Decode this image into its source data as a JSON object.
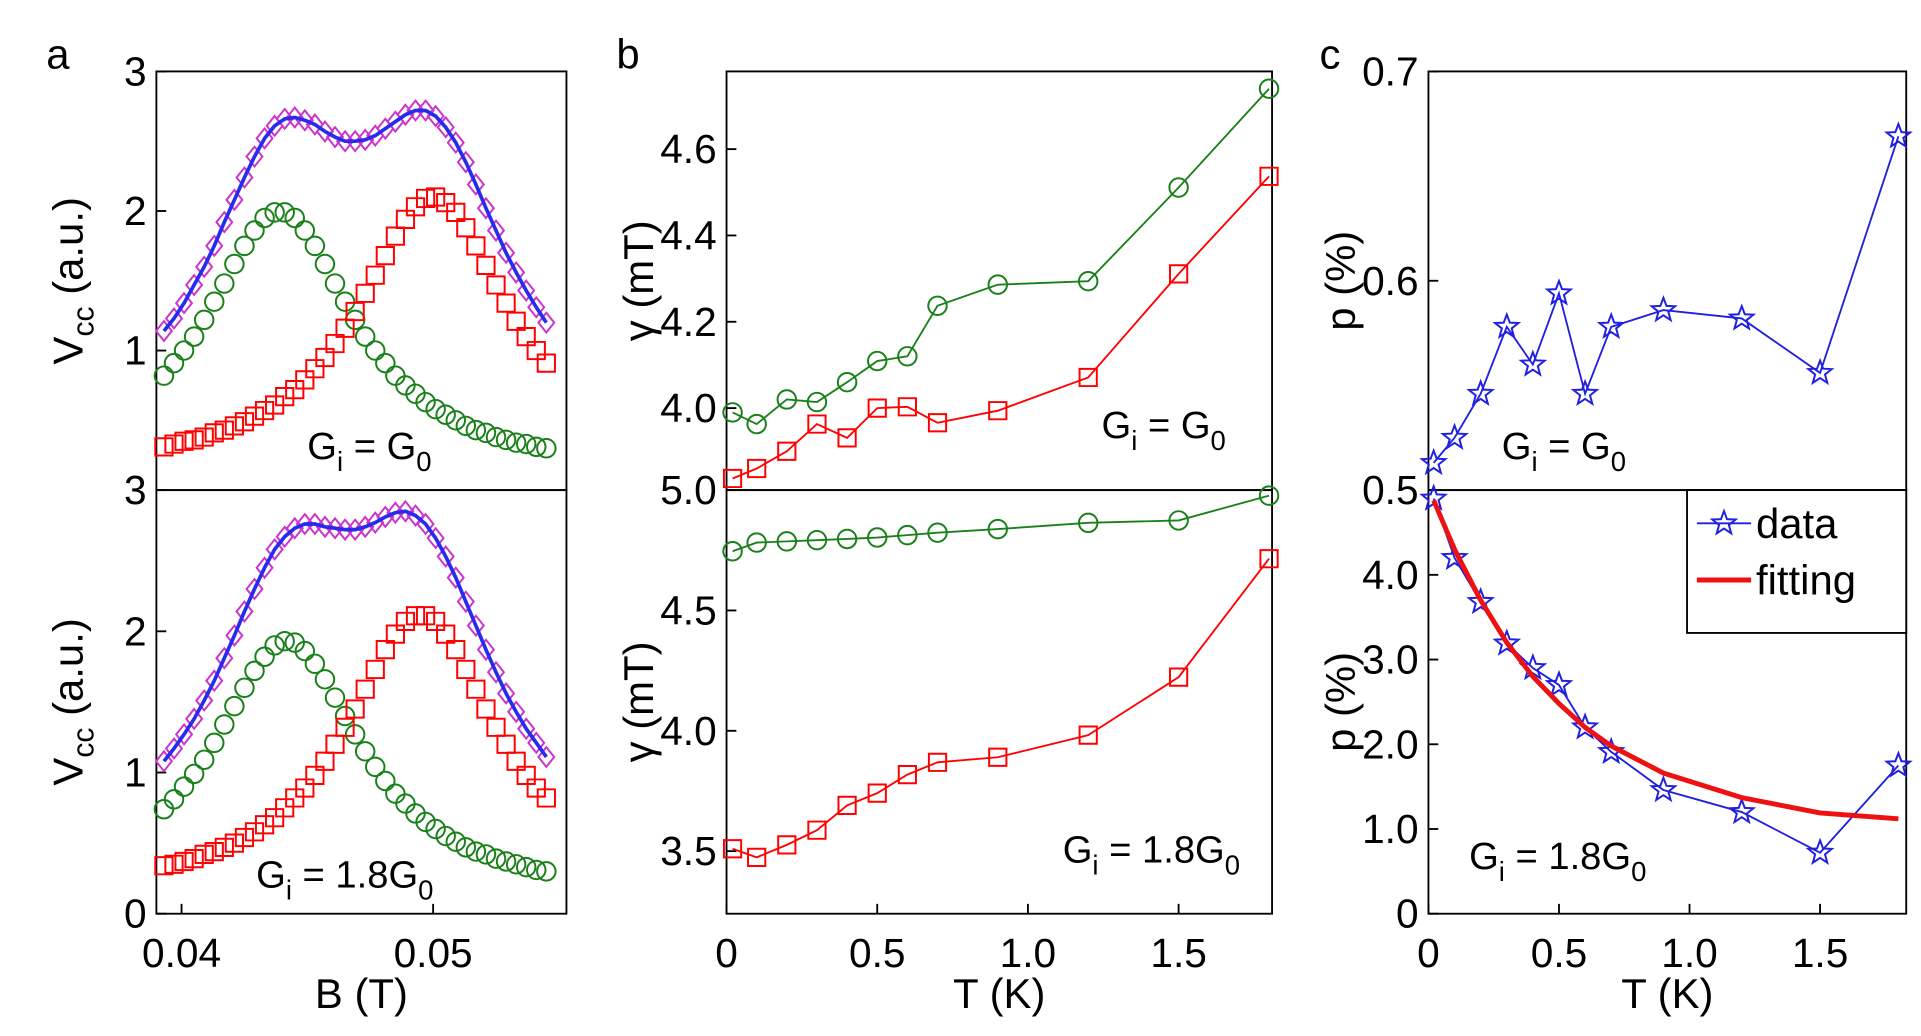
{
  "chart_data": [
    {
      "type": "line",
      "label": "a",
      "ylabel": {
        "pieces": [
          "V",
          "cc",
          " (a.u.)"
        ]
      },
      "annotation": {
        "pieces": [
          "G",
          "i",
          " = G",
          "0"
        ]
      },
      "xlim": [
        0.039,
        0.0553
      ],
      "ylim": [
        0,
        3
      ],
      "yticks": [
        1,
        2,
        3
      ],
      "x": [
        0.0393,
        0.0397,
        0.0401,
        0.0405,
        0.0409,
        0.0413,
        0.0417,
        0.0421,
        0.0425,
        0.0429,
        0.0433,
        0.0437,
        0.0441,
        0.0445,
        0.0449,
        0.0453,
        0.0457,
        0.0461,
        0.0465,
        0.0469,
        0.0473,
        0.0477,
        0.0481,
        0.0485,
        0.0489,
        0.0493,
        0.0497,
        0.0501,
        0.0505,
        0.0509,
        0.0513,
        0.0517,
        0.0521,
        0.0525,
        0.0529,
        0.0533,
        0.0537,
        0.0541,
        0.0545
      ],
      "series": [
        {
          "color": "#1a801a",
          "marker": "circle",
          "line": false,
          "values": [
            0.82,
            0.91,
            1.0,
            1.1,
            1.22,
            1.35,
            1.48,
            1.62,
            1.75,
            1.86,
            1.95,
            1.99,
            1.99,
            1.95,
            1.86,
            1.75,
            1.62,
            1.48,
            1.35,
            1.22,
            1.1,
            1.0,
            0.91,
            0.82,
            0.75,
            0.69,
            0.63,
            0.58,
            0.54,
            0.5,
            0.46,
            0.43,
            0.41,
            0.38,
            0.36,
            0.34,
            0.33,
            0.31,
            0.3
          ]
        },
        {
          "color": "#ff0000",
          "marker": "square",
          "line": false,
          "values": [
            0.31,
            0.33,
            0.35,
            0.36,
            0.38,
            0.41,
            0.43,
            0.46,
            0.49,
            0.53,
            0.57,
            0.61,
            0.67,
            0.72,
            0.79,
            0.87,
            0.95,
            1.05,
            1.16,
            1.28,
            1.41,
            1.54,
            1.68,
            1.82,
            1.94,
            2.03,
            2.09,
            2.1,
            2.06,
            1.99,
            1.88,
            1.75,
            1.61,
            1.47,
            1.34,
            1.21,
            1.1,
            1.0,
            0.91
          ]
        },
        {
          "color": "#cc33cc",
          "marker": "diamond",
          "line": false,
          "values": [
            1.14,
            1.23,
            1.34,
            1.47,
            1.6,
            1.75,
            1.92,
            2.08,
            2.24,
            2.39,
            2.52,
            2.61,
            2.66,
            2.67,
            2.65,
            2.62,
            2.57,
            2.53,
            2.5,
            2.5,
            2.51,
            2.54,
            2.59,
            2.64,
            2.69,
            2.72,
            2.72,
            2.68,
            2.6,
            2.49,
            2.35,
            2.19,
            2.02,
            1.86,
            1.7,
            1.56,
            1.43,
            1.31,
            1.2
          ]
        },
        {
          "color": "#2a2aee",
          "marker": "none",
          "line": true,
          "width": 3,
          "values": [
            1.14,
            1.23,
            1.34,
            1.47,
            1.6,
            1.75,
            1.92,
            2.08,
            2.24,
            2.39,
            2.52,
            2.61,
            2.66,
            2.67,
            2.65,
            2.62,
            2.57,
            2.53,
            2.5,
            2.5,
            2.51,
            2.54,
            2.59,
            2.64,
            2.69,
            2.72,
            2.72,
            2.68,
            2.6,
            2.49,
            2.35,
            2.19,
            2.02,
            1.86,
            1.7,
            1.56,
            1.43,
            1.31,
            1.2
          ]
        }
      ]
    },
    {
      "type": "line",
      "ylabel": {
        "pieces": [
          "V",
          "cc",
          " (a.u.)"
        ]
      },
      "xlabel": "B (T)",
      "annotation": {
        "pieces": [
          "G",
          "i",
          " = 1.8G",
          "0"
        ]
      },
      "xlim": [
        0.039,
        0.0553
      ],
      "ylim": [
        0,
        3
      ],
      "yticks": [
        0,
        1,
        2,
        3
      ],
      "xticks": [
        0.04,
        0.05
      ],
      "x": [
        0.0393,
        0.0397,
        0.0401,
        0.0405,
        0.0409,
        0.0413,
        0.0417,
        0.0421,
        0.0425,
        0.0429,
        0.0433,
        0.0437,
        0.0441,
        0.0445,
        0.0449,
        0.0453,
        0.0457,
        0.0461,
        0.0465,
        0.0469,
        0.0473,
        0.0477,
        0.0481,
        0.0485,
        0.0489,
        0.0493,
        0.0497,
        0.0501,
        0.0505,
        0.0509,
        0.0513,
        0.0517,
        0.0521,
        0.0525,
        0.0529,
        0.0533,
        0.0537,
        0.0541,
        0.0545
      ],
      "series": [
        {
          "color": "#1a801a",
          "marker": "circle",
          "line": false,
          "values": [
            0.74,
            0.81,
            0.9,
            0.99,
            1.09,
            1.21,
            1.34,
            1.47,
            1.6,
            1.72,
            1.82,
            1.9,
            1.93,
            1.92,
            1.86,
            1.77,
            1.66,
            1.53,
            1.4,
            1.27,
            1.15,
            1.04,
            0.94,
            0.85,
            0.78,
            0.71,
            0.65,
            0.6,
            0.55,
            0.51,
            0.47,
            0.44,
            0.42,
            0.39,
            0.37,
            0.35,
            0.33,
            0.31,
            0.3
          ]
        },
        {
          "color": "#ff0000",
          "marker": "square",
          "line": false,
          "values": [
            0.34,
            0.35,
            0.37,
            0.39,
            0.42,
            0.44,
            0.47,
            0.5,
            0.54,
            0.58,
            0.63,
            0.68,
            0.75,
            0.82,
            0.89,
            0.98,
            1.08,
            1.2,
            1.32,
            1.45,
            1.59,
            1.73,
            1.87,
            1.98,
            2.07,
            2.11,
            2.11,
            2.07,
            1.98,
            1.87,
            1.73,
            1.59,
            1.45,
            1.32,
            1.2,
            1.08,
            0.98,
            0.89,
            0.82
          ]
        },
        {
          "color": "#cc33cc",
          "marker": "diamond",
          "line": false,
          "values": [
            1.08,
            1.17,
            1.27,
            1.38,
            1.51,
            1.65,
            1.81,
            1.97,
            2.14,
            2.3,
            2.45,
            2.58,
            2.67,
            2.73,
            2.76,
            2.76,
            2.74,
            2.73,
            2.72,
            2.72,
            2.74,
            2.77,
            2.81,
            2.84,
            2.85,
            2.82,
            2.76,
            2.66,
            2.53,
            2.38,
            2.21,
            2.04,
            1.87,
            1.71,
            1.56,
            1.43,
            1.31,
            1.21,
            1.11
          ]
        },
        {
          "color": "#2a2aee",
          "marker": "none",
          "line": true,
          "width": 3,
          "values": [
            1.08,
            1.17,
            1.27,
            1.38,
            1.51,
            1.65,
            1.81,
            1.97,
            2.14,
            2.3,
            2.45,
            2.58,
            2.67,
            2.73,
            2.76,
            2.76,
            2.74,
            2.73,
            2.72,
            2.72,
            2.74,
            2.77,
            2.81,
            2.84,
            2.85,
            2.82,
            2.76,
            2.66,
            2.53,
            2.38,
            2.21,
            2.04,
            1.87,
            1.71,
            1.56,
            1.43,
            1.31,
            1.21,
            1.11
          ]
        }
      ]
    },
    {
      "type": "line",
      "label": "b",
      "ylabel": {
        "pieces": [
          "γ (mT)"
        ]
      },
      "annotation": {
        "pieces": [
          "G",
          "i",
          " = G",
          "0"
        ]
      },
      "xlim": [
        0,
        1.81
      ],
      "ylim": [
        3.81,
        4.78
      ],
      "yticks": [
        {
          "value": 4,
          "label": "4.0"
        },
        4.2,
        4.4,
        4.6
      ],
      "x": [
        0.02,
        0.1,
        0.2,
        0.3,
        0.4,
        0.5,
        0.6,
        0.7,
        0.9,
        1.2,
        1.5,
        1.8
      ],
      "series": [
        {
          "color": "#1a801a",
          "marker": "circle",
          "line": true,
          "width": 1.5,
          "values": [
            3.99,
            3.963,
            4.02,
            4.014,
            4.06,
            4.109,
            4.12,
            4.237,
            4.286,
            4.294,
            4.511,
            4.74
          ]
        },
        {
          "color": "#ff0000",
          "marker": "square",
          "line": true,
          "width": 1.5,
          "values": [
            3.837,
            3.86,
            3.9,
            3.963,
            3.931,
            4.0,
            4.003,
            3.966,
            3.994,
            4.071,
            4.311,
            4.537
          ]
        }
      ]
    },
    {
      "type": "line",
      "ylabel": {
        "pieces": [
          "γ (mT)"
        ]
      },
      "xlabel": "T (K)",
      "annotation": {
        "pieces": [
          "G",
          "i",
          " = 1.8G",
          "0"
        ]
      },
      "xlim": [
        0,
        1.81
      ],
      "ylim": [
        3.24,
        5.0
      ],
      "yticks": [
        3.5,
        {
          "value": 4,
          "label": "4.0"
        },
        4.5,
        {
          "value": 5,
          "label": "5.0"
        }
      ],
      "xticks": [
        0,
        0.5,
        {
          "value": 1,
          "label": "1.0"
        },
        1.5
      ],
      "x": [
        0.02,
        0.1,
        0.2,
        0.3,
        0.4,
        0.5,
        0.6,
        0.7,
        0.9,
        1.2,
        1.5,
        1.8
      ],
      "series": [
        {
          "color": "#1a801a",
          "marker": "circle",
          "line": true,
          "width": 1.5,
          "values": [
            4.746,
            4.782,
            4.787,
            4.792,
            4.797,
            4.803,
            4.813,
            4.823,
            4.838,
            4.864,
            4.874,
            4.977
          ]
        },
        {
          "color": "#ff0000",
          "marker": "square",
          "line": true,
          "width": 1.5,
          "values": [
            3.51,
            3.474,
            3.526,
            3.587,
            3.69,
            3.741,
            3.818,
            3.869,
            3.89,
            3.982,
            4.223,
            4.715
          ]
        }
      ]
    },
    {
      "type": "line",
      "label": "c",
      "ylabel": {
        "pieces": [
          "p (%)"
        ]
      },
      "annotation": {
        "pieces": [
          "G",
          "i",
          " = G",
          "0"
        ]
      },
      "xlim": [
        0,
        1.83
      ],
      "ylim": [
        0.5,
        0.7
      ],
      "yticks": [
        0.5,
        0.6,
        0.7
      ],
      "x": [
        0.02,
        0.1,
        0.2,
        0.3,
        0.4,
        0.5,
        0.6,
        0.7,
        0.9,
        1.2,
        1.5,
        1.8
      ],
      "series": [
        {
          "color": "#2020e0",
          "marker": "star",
          "line": true,
          "width": 1.5,
          "values": [
            0.513,
            0.525,
            0.546,
            0.578,
            0.56,
            0.594,
            0.546,
            0.578,
            0.586,
            0.582,
            0.556,
            0.669
          ]
        }
      ]
    },
    {
      "type": "line",
      "ylabel": {
        "pieces": [
          "p (%)"
        ]
      },
      "xlabel": "T (K)",
      "annotation": {
        "pieces": [
          "G",
          "i",
          " = 1.8G",
          "0"
        ]
      },
      "xlim": [
        0,
        1.83
      ],
      "ylim": [
        0,
        5
      ],
      "yticks": [
        0,
        {
          "value": 1,
          "label": "1.0"
        },
        {
          "value": 2,
          "label": "2.0"
        },
        {
          "value": 3,
          "label": "3.0"
        },
        {
          "value": 4,
          "label": "4.0"
        }
      ],
      "xticks": [
        0,
        0.5,
        {
          "value": 1,
          "label": "1.0"
        },
        1.5
      ],
      "legend": "upper right",
      "x": [
        0.02,
        0.1,
        0.2,
        0.3,
        0.4,
        0.5,
        0.6,
        0.7,
        0.9,
        1.2,
        1.5,
        1.8
      ],
      "series": [
        {
          "name": "data",
          "color": "#2020e0",
          "marker": "star",
          "line": true,
          "width": 1.5,
          "values": [
            4.9,
            4.2,
            3.68,
            3.19,
            2.9,
            2.7,
            2.2,
            1.91,
            1.46,
            1.2,
            0.72,
            1.75
          ]
        },
        {
          "name": "fitting",
          "color": "#ee1111",
          "marker": "none",
          "line": true,
          "width": 4,
          "values": [
            4.88,
            4.3,
            3.7,
            3.2,
            2.8,
            2.48,
            2.2,
            1.98,
            1.66,
            1.37,
            1.19,
            1.12
          ]
        }
      ]
    }
  ]
}
